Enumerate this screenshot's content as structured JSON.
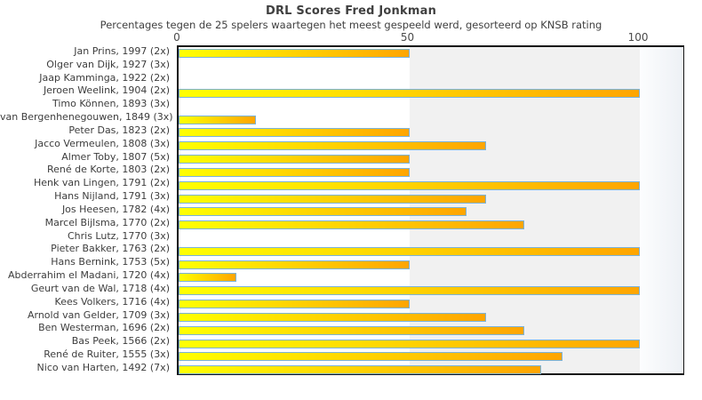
{
  "chart_data": {
    "type": "bar",
    "orientation": "horizontal",
    "title": "DRL Scores Fred Jonkman",
    "subtitle": "Percentages tegen de 25 spelers waartegen het meest gespeeld werd, gesorteerd op KNSB rating",
    "x_axis": {
      "position": "top",
      "min": 0,
      "max": 110,
      "ticks": [
        0,
        50,
        100
      ]
    },
    "grid": "off",
    "legend": "none",
    "categories": [
      "Jan Prins, 1997 (2x)",
      "Olger van Dijk, 1927 (3x)",
      "Jaap Kamminga, 1922 (2x)",
      "Jeroen Weelink, 1904 (2x)",
      "Timo Können, 1893 (3x)",
      "van Bergenhenegouwen, 1849 (3x)",
      "Peter Das, 1823 (2x)",
      "Jacco Vermeulen, 1808 (3x)",
      "Almer Toby, 1807 (5x)",
      "René de Korte, 1803 (2x)",
      "Henk van Lingen, 1791 (2x)",
      "Hans Nijland, 1791 (3x)",
      "Jos Heesen, 1782 (4x)",
      "Marcel Bijlsma, 1770 (2x)",
      "Chris Lutz, 1770 (3x)",
      "Pieter Bakker, 1763 (2x)",
      "Hans Bernink, 1753 (5x)",
      "Abderrahim el Madani, 1720 (4x)",
      "Geurt van de Wal, 1718 (4x)",
      "Kees Volkers, 1716 (4x)",
      "Arnold van Gelder, 1709 (3x)",
      "Ben Westerman, 1696 (2x)",
      "Bas Peek, 1566 (2x)",
      "René de Ruiter, 1555 (3x)",
      "Nico van Harten, 1492 (7x)"
    ],
    "values": [
      50,
      0,
      0,
      100,
      0,
      16.7,
      50,
      66.7,
      50,
      50,
      100,
      66.7,
      62.5,
      75,
      0,
      100,
      50,
      12.5,
      100,
      50,
      66.7,
      75,
      100,
      83.3,
      78.6
    ],
    "bands": [
      {
        "name": "band-50-100",
        "from": 50,
        "to": 100
      },
      {
        "name": "band-beyond-100",
        "from": 100,
        "to": 110
      }
    ],
    "colors": {
      "bar_gradient_start": "#ffff00",
      "bar_gradient_end": "#ffa500",
      "bar_border": "#7ab2d9",
      "plot_background": "#ffffff",
      "band_50_100": "#f1f1f1",
      "band_beyond_100_start": "#fcfdfe",
      "band_beyond_100_end": "#edf1f5",
      "frame": "#141414",
      "title_text": "#404040",
      "tick_text": "#4a4a4a",
      "category_text": "#3d3d3d"
    }
  }
}
